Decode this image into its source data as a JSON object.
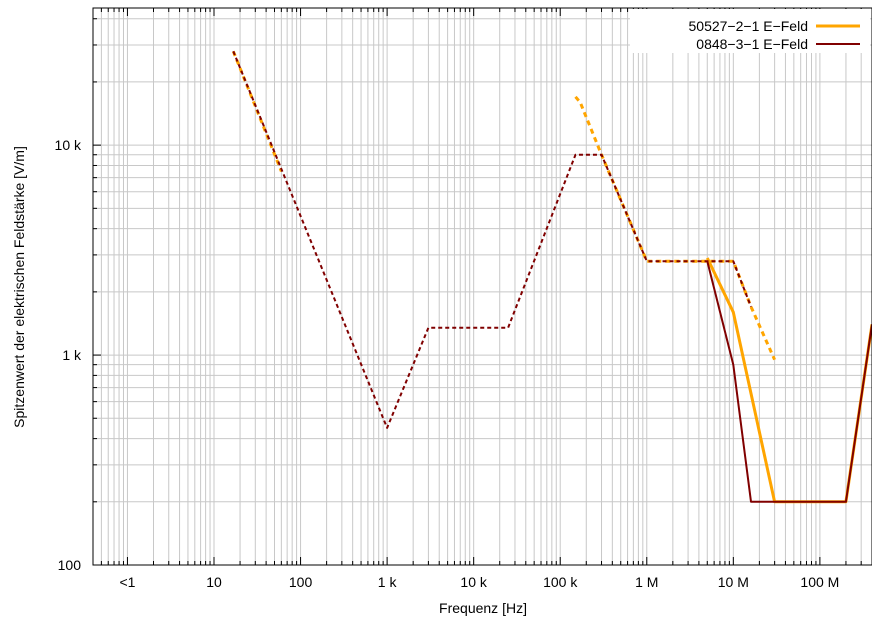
{
  "chart_data": {
    "type": "line",
    "xlabel": "Frequenz [Hz]",
    "ylabel": "Spitzenwert der elektrischen Feldstärke [V/m]",
    "x_scale": "log",
    "y_scale": "log",
    "xlim": [
      0.4,
      400000000
    ],
    "ylim": [
      100,
      45000
    ],
    "grid": true,
    "legend_position": "top-right",
    "x_ticks": [
      {
        "value": 1,
        "label": "<1"
      },
      {
        "value": 10,
        "label": "10"
      },
      {
        "value": 100,
        "label": "100"
      },
      {
        "value": 1000,
        "label": "1 k"
      },
      {
        "value": 10000,
        "label": "10 k"
      },
      {
        "value": 100000,
        "label": "100 k"
      },
      {
        "value": 1000000,
        "label": "1 M"
      },
      {
        "value": 10000000,
        "label": "10 M"
      },
      {
        "value": 100000000,
        "label": "100 M"
      }
    ],
    "y_ticks": [
      {
        "value": 100,
        "label": "100"
      },
      {
        "value": 1000,
        "label": "1 k"
      },
      {
        "value": 10000,
        "label": "10 k"
      }
    ],
    "series": [
      {
        "name": "50527−2−1 E−Feld",
        "color": "#ffa500",
        "segments": [
          {
            "style": "dashed",
            "points": [
              [
                16.7,
                28000
              ],
              [
                60,
                7500
              ]
            ]
          },
          {
            "style": "dashed",
            "points": [
              [
                150000,
                17000
              ],
              [
                170000,
                16000
              ],
              [
                300000,
                9000
              ],
              [
                1000000,
                2800
              ],
              [
                10000000,
                2800
              ],
              [
                16000000,
                1700
              ],
              [
                30000000,
                950
              ]
            ]
          },
          {
            "style": "solid",
            "points": [
              [
                5000000,
                2900
              ],
              [
                10000000,
                1600
              ],
              [
                30000000,
                200
              ],
              [
                200000000,
                200
              ],
              [
                400000000,
                1400
              ]
            ]
          }
        ]
      },
      {
        "name": "0848−3−1 E−Feld",
        "color": "#800000",
        "segments": [
          {
            "style": "dashed",
            "points": [
              [
                16.7,
                28000
              ],
              [
                1000,
                450
              ],
              [
                3000,
                1350
              ],
              [
                25000,
                1350
              ],
              [
                150000,
                9000
              ],
              [
                300000,
                9000
              ],
              [
                1000000,
                2800
              ],
              [
                10000000,
                2800
              ],
              [
                16000000,
                1700
              ]
            ]
          },
          {
            "style": "solid",
            "points": [
              [
                5000000,
                2800
              ],
              [
                10000000,
                900
              ],
              [
                16000000,
                200
              ],
              [
                200000000,
                200
              ],
              [
                400000000,
                1400
              ]
            ]
          }
        ]
      }
    ]
  }
}
